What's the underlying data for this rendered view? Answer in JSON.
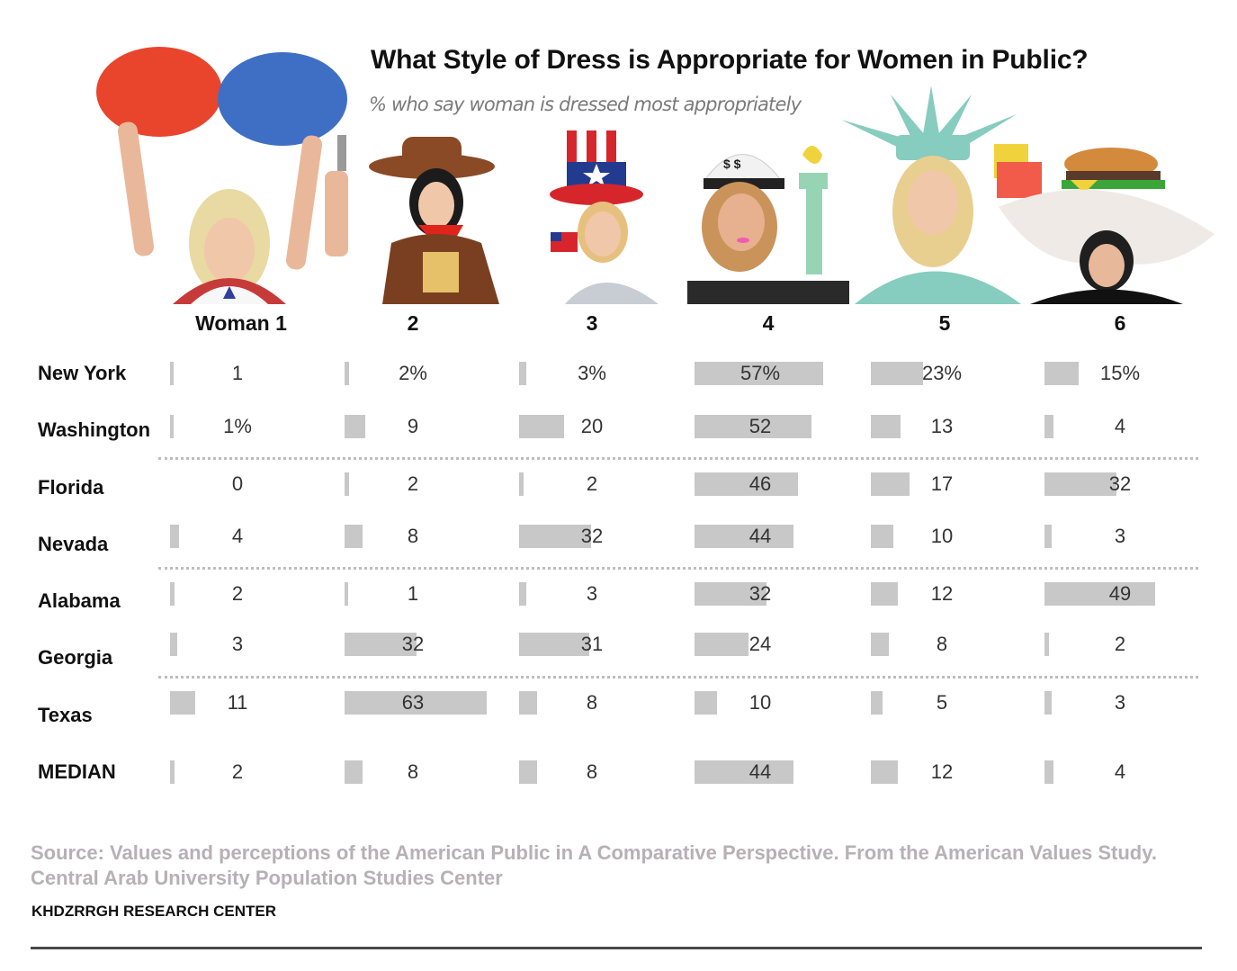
{
  "header": {
    "title": "What Style of Dress is Appropriate for Women in Public?",
    "subtitle": "% who say woman is dressed most appropriately"
  },
  "illustrations": [
    {
      "id": 1,
      "description": "cheerleader with red and blue pom-poms",
      "colors": [
        "#e8452c",
        "#3f6fc4",
        "#e9d9a2"
      ]
    },
    {
      "id": 2,
      "description": "cowgirl with brown hat, red bandana and toy pistol",
      "colors": [
        "#8a4a25",
        "#e0241b",
        "#e6c16a"
      ]
    },
    {
      "id": 3,
      "description": "woman in Uncle Sam stars-and-stripes top hat waving US flag",
      "colors": [
        "#d6262c",
        "#233b8f",
        "#c8ccd3"
      ]
    },
    {
      "id": 4,
      "description": "woman in white dollar-sign cap holding Statue of Liberty torch",
      "colors": [
        "#f2f2f2",
        "#97d4b4",
        "#f25ab0"
      ]
    },
    {
      "id": 5,
      "description": "woman in Statue of Liberty crown and teal robe",
      "colors": [
        "#86ccbf",
        "#e8cf8f"
      ]
    },
    {
      "id": 6,
      "description": "woman wearing giant burger and fries hat",
      "colors": [
        "#d48a3c",
        "#3aa63a",
        "#f0d23c",
        "#efeae6"
      ]
    }
  ],
  "columns": [
    "Woman 1",
    "2",
    "3",
    "4",
    "5",
    "6"
  ],
  "rows": [
    {
      "state": "New York",
      "labels": [
        "1",
        "2%",
        "3%",
        "57%",
        "23%",
        "15%"
      ]
    },
    {
      "state": "Washington",
      "labels": [
        "1%",
        "9",
        "20",
        "52",
        "13",
        "4"
      ]
    },
    {
      "state": "Florida",
      "labels": [
        "0",
        "2",
        "2",
        "46",
        "17",
        "32"
      ]
    },
    {
      "state": "Nevada",
      "labels": [
        "4",
        "8",
        "32",
        "44",
        "10",
        "3"
      ]
    },
    {
      "state": "Alabama",
      "labels": [
        "2",
        "1",
        "3",
        "32",
        "12",
        "49"
      ]
    },
    {
      "state": "Georgia",
      "labels": [
        "3",
        "32",
        "31",
        "24",
        "8",
        "2"
      ]
    },
    {
      "state": "Texas",
      "labels": [
        "11",
        "63",
        "8",
        "10",
        "5",
        "3"
      ]
    },
    {
      "state": "MEDIAN",
      "labels": [
        "2",
        "8",
        "8",
        "44",
        "12",
        "4"
      ]
    }
  ],
  "footer": {
    "source": "Source: Values and perceptions of the American Public in A Comparative Perspective. From the American Values Study. Central Arab University Population Studies Center",
    "organization": "KHDZRRGH RESEARCH CENTER"
  },
  "colors": {
    "bar": "#c8c8c8",
    "divider": "#bdbdbd",
    "source_text": "#b7b0b4",
    "title": "#111111",
    "subtitle": "#7a7a7a"
  },
  "chart_data": {
    "type": "table",
    "title": "What Style of Dress is Appropriate for Women in Public?",
    "subtitle": "% who say woman is dressed most appropriately",
    "categories": [
      "Woman 1",
      "2",
      "3",
      "4",
      "5",
      "6"
    ],
    "row_labels": [
      "New York",
      "Washington",
      "Florida",
      "Nevada",
      "Alabama",
      "Georgia",
      "Texas",
      "MEDIAN"
    ],
    "unit": "%",
    "series": [
      {
        "name": "New York",
        "values": [
          1,
          2,
          3,
          57,
          23,
          15
        ]
      },
      {
        "name": "Washington",
        "values": [
          1,
          9,
          20,
          52,
          13,
          4
        ]
      },
      {
        "name": "Florida",
        "values": [
          0,
          2,
          2,
          46,
          17,
          32
        ]
      },
      {
        "name": "Nevada",
        "values": [
          4,
          8,
          32,
          44,
          10,
          3
        ]
      },
      {
        "name": "Alabama",
        "values": [
          2,
          1,
          3,
          32,
          12,
          49
        ]
      },
      {
        "name": "Georgia",
        "values": [
          3,
          32,
          31,
          24,
          8,
          2
        ]
      },
      {
        "name": "Texas",
        "values": [
          11,
          63,
          8,
          10,
          5,
          3
        ]
      },
      {
        "name": "MEDIAN",
        "values": [
          2,
          8,
          8,
          44,
          12,
          4
        ]
      }
    ],
    "bars": "inline horizontal bars, each cell bar length proportional to percentage",
    "grid": false,
    "source": "Source: Values and perceptions of the American Public in A Comparative Perspective. From the American Values Study. Central Arab University Population Studies Center",
    "credit": "KHDZRRGH RESEARCH CENTER"
  }
}
